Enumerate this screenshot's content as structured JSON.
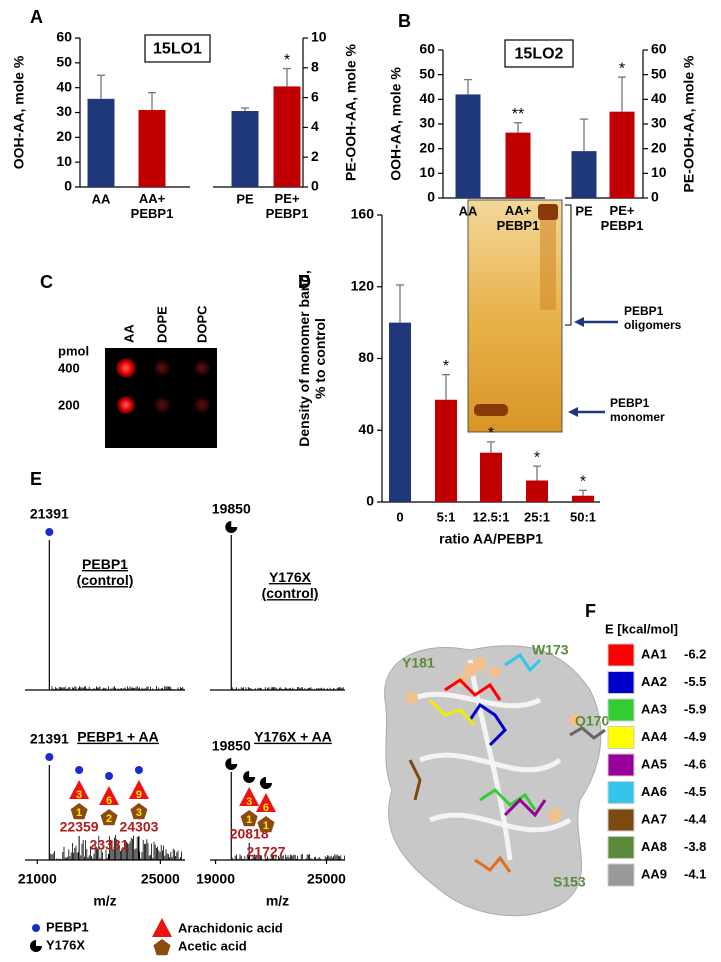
{
  "panel_labels": [
    "A",
    "B",
    "C",
    "D",
    "E",
    "F"
  ],
  "chart_data": [
    {
      "type": "bar",
      "box_label": "15LO1",
      "y_label": "OOH-AA, mole %",
      "y2_label": "PE-OOH-AA, mole %",
      "categories": [
        "AA",
        "AA+\nPEBP1",
        "PE",
        "PE+\nPEBP1"
      ],
      "values": [
        35.5,
        31,
        5.1,
        6.75
      ],
      "errors": [
        9.5,
        7,
        0.2,
        1.2
      ],
      "axes": [
        "y",
        "y",
        "y2",
        "y2"
      ],
      "colors": [
        "#1f3879",
        "#c00000",
        "#1f3879",
        "#c00000"
      ],
      "annotations": [
        null,
        null,
        null,
        "*"
      ],
      "ylim": [
        0,
        60
      ],
      "yticks": [
        0,
        10,
        20,
        30,
        40,
        50,
        60
      ],
      "y2lim": [
        0,
        10
      ],
      "y2ticks": [
        0,
        2,
        4,
        6,
        8,
        10
      ]
    },
    {
      "type": "bar",
      "box_label": "15LO2",
      "y_label": "OOH-AA, mole %",
      "y2_label": "PE-OOH-AA, mole %",
      "categories": [
        "AA",
        "AA+\nPEBP1",
        "PE",
        "PE+\nPEBP1"
      ],
      "values": [
        42,
        26.5,
        19,
        35
      ],
      "errors": [
        6,
        4,
        13,
        14
      ],
      "axes": [
        "y",
        "y",
        "y2",
        "y2"
      ],
      "colors": [
        "#1f3879",
        "#c00000",
        "#1f3879",
        "#c00000"
      ],
      "annotations": [
        null,
        "**",
        null,
        "*"
      ],
      "ylim": [
        0,
        60
      ],
      "yticks": [
        0,
        10,
        20,
        30,
        40,
        50,
        60
      ],
      "y2lim": [
        0,
        60
      ],
      "y2ticks": [
        0,
        10,
        20,
        30,
        40,
        50,
        60
      ]
    },
    {
      "type": "bar",
      "y_label": "Density of monomer  band,\n% to control",
      "x_label": "ratio AA/PEBP1",
      "categories": [
        "0",
        "5:1",
        "12.5:1",
        "25:1",
        "50:1"
      ],
      "values": [
        100,
        57,
        27.5,
        12,
        3.5
      ],
      "errors": [
        21,
        14,
        6,
        8,
        3
      ],
      "colors": [
        "#1f3879",
        "#c00000",
        "#c00000",
        "#c00000",
        "#c00000"
      ],
      "annotations": [
        null,
        "*",
        "*",
        "*",
        "*"
      ],
      "ylim": [
        0,
        160
      ],
      "yticks": [
        0,
        40,
        80,
        120,
        160
      ],
      "inset": {
        "title": "AA",
        "oligomer_label": "PEBP1\noligomers",
        "monomer_label": "PEBP1\nmonomer"
      }
    }
  ],
  "dot_blot": {
    "unit": "pmol",
    "amounts": [
      400,
      200
    ],
    "lipids": [
      "AA",
      "DOPE",
      "DOPC"
    ]
  },
  "spectra": {
    "x_label": "m/z",
    "panels": [
      {
        "title": "PEBP1\n(control)",
        "main_peak": 21391,
        "xlim": [
          20600,
          25800
        ]
      },
      {
        "title": "Y176X\n(control)",
        "main_peak": 19850,
        "xlim": [
          18700,
          26000
        ]
      },
      {
        "title": "PEBP1 + AA",
        "main_peak": 21391,
        "xlim": [
          20600,
          25800
        ],
        "xticks": [
          21000,
          25000
        ],
        "peaks": [
          {
            "mz": 22359,
            "arachidonic": 3,
            "acetic": 1
          },
          {
            "mz": 23331,
            "arachidonic": 6,
            "acetic": 2
          },
          {
            "mz": 24303,
            "arachidonic": 9,
            "acetic": 3
          }
        ]
      },
      {
        "title": "Y176X + AA",
        "main_peak": 19850,
        "xlim": [
          18700,
          26000
        ],
        "xticks": [
          19000,
          25000
        ],
        "peaks": [
          {
            "mz": 20818,
            "arachidonic": 3,
            "acetic": 1
          },
          {
            "mz": 21727,
            "arachidonic": 6,
            "acetic": 1
          }
        ]
      }
    ],
    "legend": [
      "PEBP1",
      "Y176X",
      "Arachidonic acid",
      "Acetic acid"
    ]
  },
  "docking": {
    "header": "E [kcal/mol]",
    "residues": [
      "Y181",
      "W173",
      "Q170",
      "S153"
    ],
    "rows": [
      {
        "name": "AA1",
        "color": "#ff0000",
        "energy": -6.2
      },
      {
        "name": "AA2",
        "color": "#0000cc",
        "energy": -5.5
      },
      {
        "name": "AA3",
        "color": "#33cc33",
        "energy": -5.9
      },
      {
        "name": "AA4",
        "color": "#ffff00",
        "energy": -4.9
      },
      {
        "name": "AA5",
        "color": "#990099",
        "energy": -4.6
      },
      {
        "name": "AA6",
        "color": "#33c6ea",
        "energy": -4.5
      },
      {
        "name": "AA7",
        "color": "#7a4a10",
        "energy": -4.4
      },
      {
        "name": "AA8",
        "color": "#5a8a3a",
        "energy": -3.8
      },
      {
        "name": "AA9",
        "color": "#999999",
        "energy": -4.1
      }
    ]
  }
}
